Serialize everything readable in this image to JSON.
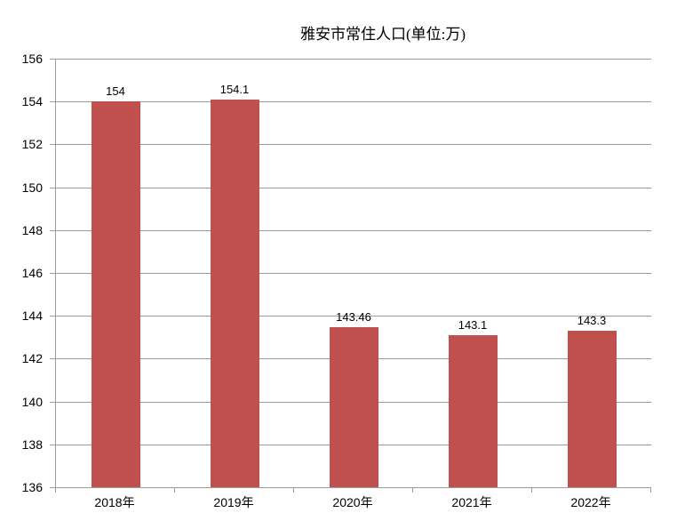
{
  "chart_data": {
    "type": "bar",
    "title": "雅安市常住人口(单位:万)",
    "categories": [
      "2018年",
      "2019年",
      "2020年",
      "2021年",
      "2022年"
    ],
    "values": [
      154,
      154.1,
      143.46,
      143.1,
      143.3
    ],
    "value_labels": [
      "154",
      "154.1",
      "143.46",
      "143.1",
      "143.3"
    ],
    "xlabel": "",
    "ylabel": "",
    "ylim": [
      136,
      156
    ],
    "ytick_step": 2,
    "ytick_labels": [
      "136",
      "138",
      "140",
      "142",
      "144",
      "146",
      "148",
      "150",
      "152",
      "154",
      "156"
    ],
    "grid": true,
    "legend_position": "none",
    "bar_color": "#c0504d",
    "grid_color": "#9a9a9a",
    "text_color": "#000000",
    "background_color": "#ffffff"
  }
}
